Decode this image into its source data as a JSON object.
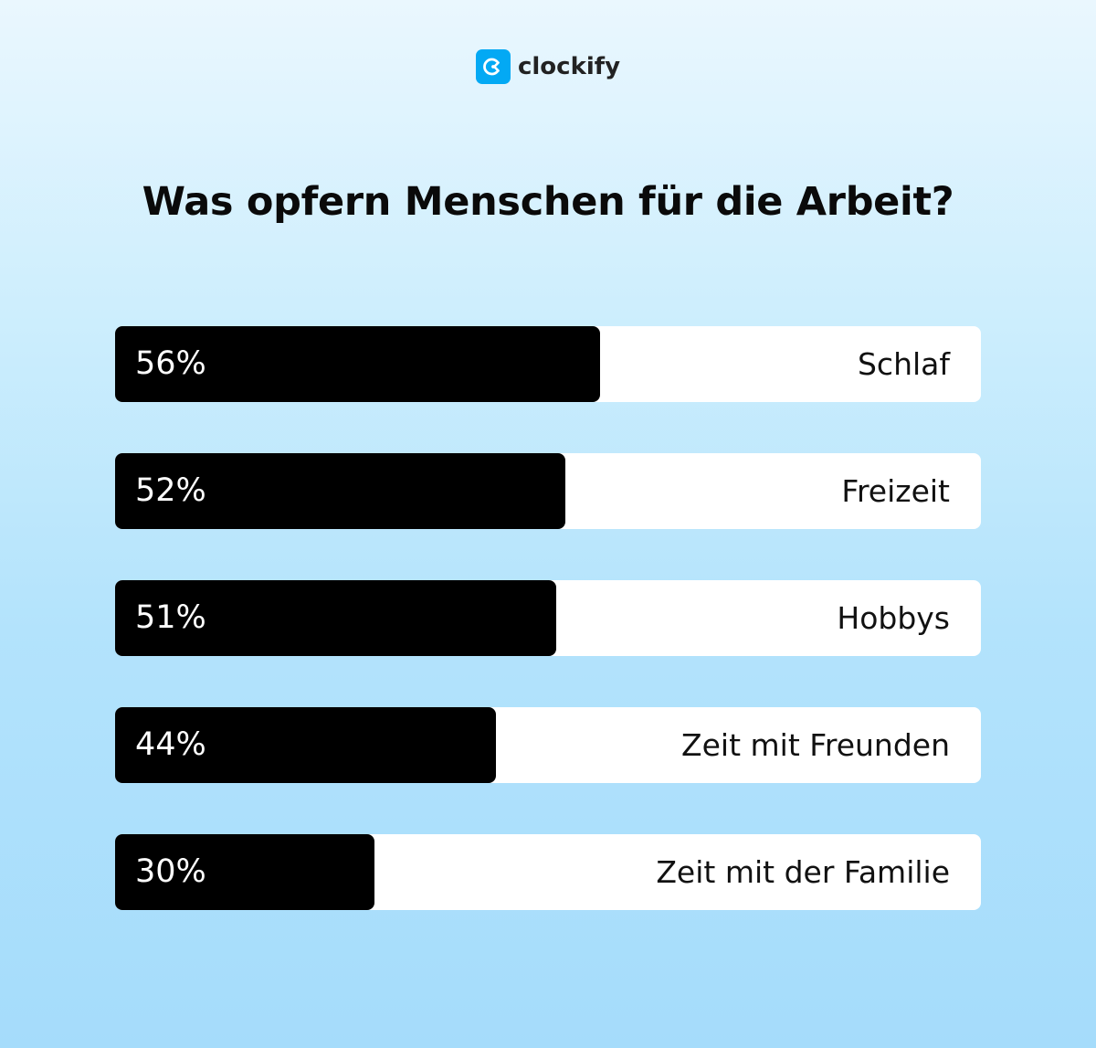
{
  "brand": {
    "name": "clockify",
    "logo_color": "#03a9f4"
  },
  "chart_data": {
    "type": "bar",
    "orientation": "horizontal",
    "title": "Was opfern Menschen für die Arbeit?",
    "categories": [
      "Schlaf",
      "Freizeit",
      "Hobbys",
      "Zeit mit Freunden",
      "Zeit mit der Familie"
    ],
    "values": [
      56,
      52,
      51,
      44,
      30
    ],
    "value_labels": [
      "56%",
      "52%",
      "51%",
      "44%",
      "30%"
    ],
    "unit": "%",
    "xlim": [
      0,
      100
    ],
    "grid": false,
    "legend": "none",
    "bar_color": "#000000",
    "track_color": "#ffffff"
  }
}
